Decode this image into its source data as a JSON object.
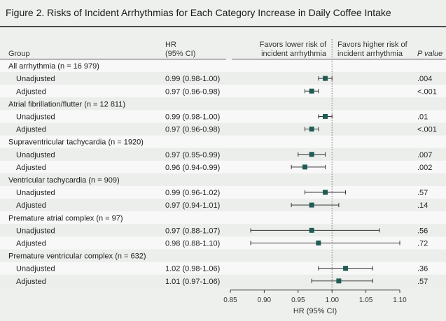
{
  "figure_title": "Figure 2. Risks of Incident Arrhythmias for Each Category Increase in Daily Coffee Intake",
  "chart_data": {
    "type": "forest",
    "columns": {
      "group": "Group",
      "hr_line1": "HR",
      "hr_line2": "(95% CI)",
      "favors_lower_line1": "Favors lower risk of",
      "favors_lower_line2": "incident arrhythmia",
      "favors_higher_line1": "Favors higher risk of",
      "favors_higher_line2": "incident arrhythmia",
      "p_value": "P value"
    },
    "xlabel": "HR (95% CI)",
    "xlim": [
      0.85,
      1.1
    ],
    "xticks": [
      0.85,
      0.9,
      0.95,
      1.0,
      1.05,
      1.1
    ],
    "xtick_labels": [
      "0.85",
      "0.90",
      "0.95",
      "1.00",
      "1.05",
      "1.10"
    ],
    "reference_line": 1.0,
    "groups": [
      {
        "label": "All arrhythmia (n = 16 979)",
        "rows": [
          {
            "label": "Unadjusted",
            "hr_text": "0.99 (0.98-1.00)",
            "hr": 0.99,
            "lo": 0.98,
            "hi": 1.0,
            "p": ".004"
          },
          {
            "label": "Adjusted",
            "hr_text": "0.97 (0.96-0.98)",
            "hr": 0.97,
            "lo": 0.96,
            "hi": 0.98,
            "p": "<.001"
          }
        ]
      },
      {
        "label": "Atrial fibrillation/flutter (n = 12 811)",
        "rows": [
          {
            "label": "Unadjusted",
            "hr_text": "0.99 (0.98-1.00)",
            "hr": 0.99,
            "lo": 0.98,
            "hi": 1.0,
            "p": ".01"
          },
          {
            "label": "Adjusted",
            "hr_text": "0.97 (0.96-0.98)",
            "hr": 0.97,
            "lo": 0.96,
            "hi": 0.98,
            "p": "<.001"
          }
        ]
      },
      {
        "label": "Supraventricular tachycardia (n = 1920)",
        "rows": [
          {
            "label": "Unadjusted",
            "hr_text": "0.97 (0.95-0.99)",
            "hr": 0.97,
            "lo": 0.95,
            "hi": 0.99,
            "p": ".007"
          },
          {
            "label": "Adjusted",
            "hr_text": "0.96 (0.94-0.99)",
            "hr": 0.96,
            "lo": 0.94,
            "hi": 0.99,
            "p": ".002"
          }
        ]
      },
      {
        "label": "Ventricular tachycardia (n = 909)",
        "rows": [
          {
            "label": "Unadjusted",
            "hr_text": "0.99 (0.96-1.02)",
            "hr": 0.99,
            "lo": 0.96,
            "hi": 1.02,
            "p": ".57"
          },
          {
            "label": "Adjusted",
            "hr_text": "0.97 (0.94-1.01)",
            "hr": 0.97,
            "lo": 0.94,
            "hi": 1.01,
            "p": ".14"
          }
        ]
      },
      {
        "label": "Premature atrial complex (n = 97)",
        "rows": [
          {
            "label": "Unadjusted",
            "hr_text": "0.97 (0.88-1.07)",
            "hr": 0.97,
            "lo": 0.88,
            "hi": 1.07,
            "p": ".56"
          },
          {
            "label": "Adjusted",
            "hr_text": "0.98 (0.88-1.10)",
            "hr": 0.98,
            "lo": 0.88,
            "hi": 1.1,
            "p": ".72"
          }
        ]
      },
      {
        "label": "Premature ventricular complex (n = 632)",
        "rows": [
          {
            "label": "Unadjusted",
            "hr_text": "1.02 (0.98-1.06)",
            "hr": 1.02,
            "lo": 0.98,
            "hi": 1.06,
            "p": ".36"
          },
          {
            "label": "Adjusted",
            "hr_text": "1.01 (0.97-1.06)",
            "hr": 1.01,
            "lo": 0.97,
            "hi": 1.06,
            "p": ".57"
          }
        ]
      }
    ],
    "colors": {
      "marker": "#1f5c55",
      "row_stripe": "#f7f8f7",
      "row_stripe_alt": "#eceeec",
      "rule": "#555555",
      "reference_line": "#777777"
    }
  }
}
